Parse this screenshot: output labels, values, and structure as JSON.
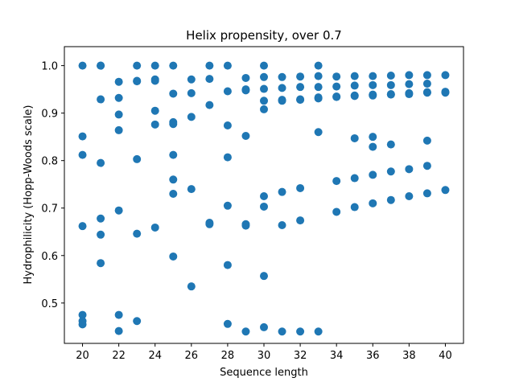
{
  "chart_data": {
    "type": "scatter",
    "title": "Helix propensity, over 0.7",
    "xlabel": "Sequence length",
    "ylabel": "Hydrophilicity (Hopp-Woods scale)",
    "xlim": [
      19,
      41
    ],
    "ylim": [
      0.415,
      1.04
    ],
    "xticks": [
      20,
      22,
      24,
      26,
      28,
      30,
      32,
      34,
      36,
      38,
      40
    ],
    "yticks": [
      0.5,
      0.6,
      0.7,
      0.8,
      0.9,
      1.0
    ],
    "ytick_labels": [
      "0.5",
      "0.6",
      "0.7",
      "0.8",
      "0.9",
      "1.0"
    ],
    "grid": false,
    "marker_color": "#1f77b4",
    "points": [
      [
        20,
        1.0
      ],
      [
        20,
        0.851
      ],
      [
        20,
        0.812
      ],
      [
        20,
        0.662
      ],
      [
        20,
        0.475
      ],
      [
        20,
        0.462
      ],
      [
        20,
        0.455
      ],
      [
        21,
        1.0
      ],
      [
        21,
        1.0
      ],
      [
        21,
        0.929
      ],
      [
        21,
        0.795
      ],
      [
        21,
        0.678
      ],
      [
        21,
        0.644
      ],
      [
        21,
        0.584
      ],
      [
        22,
        0.966
      ],
      [
        22,
        0.932
      ],
      [
        22,
        0.897
      ],
      [
        22,
        0.864
      ],
      [
        22,
        0.695
      ],
      [
        22,
        0.475
      ],
      [
        22,
        0.441
      ],
      [
        23,
        1.0
      ],
      [
        23,
        0.967
      ],
      [
        23,
        0.968
      ],
      [
        23,
        0.803
      ],
      [
        23,
        0.646
      ],
      [
        23,
        0.462
      ],
      [
        24,
        1.0
      ],
      [
        24,
        0.971
      ],
      [
        24,
        0.968
      ],
      [
        24,
        0.905
      ],
      [
        24,
        0.876
      ],
      [
        24,
        0.659
      ],
      [
        25,
        1.0
      ],
      [
        25,
        0.941
      ],
      [
        25,
        0.881
      ],
      [
        25,
        0.877
      ],
      [
        25,
        0.812
      ],
      [
        25,
        0.76
      ],
      [
        25,
        0.73
      ],
      [
        25,
        0.598
      ],
      [
        26,
        0.971
      ],
      [
        26,
        0.942
      ],
      [
        26,
        0.892
      ],
      [
        26,
        0.74
      ],
      [
        26,
        0.535
      ],
      [
        27,
        1.0
      ],
      [
        27,
        0.972
      ],
      [
        27,
        0.917
      ],
      [
        27,
        0.669
      ],
      [
        27,
        0.666
      ],
      [
        28,
        1.0
      ],
      [
        28,
        0.946
      ],
      [
        28,
        0.874
      ],
      [
        28,
        0.807
      ],
      [
        28,
        0.705
      ],
      [
        28,
        0.58
      ],
      [
        28,
        0.456
      ],
      [
        29,
        0.974
      ],
      [
        29,
        0.95
      ],
      [
        29,
        0.948
      ],
      [
        29,
        0.852
      ],
      [
        29,
        0.666
      ],
      [
        29,
        0.663
      ],
      [
        29,
        0.44
      ],
      [
        30,
        1.0
      ],
      [
        30,
        0.976
      ],
      [
        30,
        0.951
      ],
      [
        30,
        0.926
      ],
      [
        30,
        0.908
      ],
      [
        30,
        0.725
      ],
      [
        30,
        0.703
      ],
      [
        30,
        0.557
      ],
      [
        30,
        0.449
      ],
      [
        31,
        0.976
      ],
      [
        31,
        0.953
      ],
      [
        31,
        0.928
      ],
      [
        31,
        0.926
      ],
      [
        31,
        0.734
      ],
      [
        31,
        0.664
      ],
      [
        31,
        0.44
      ],
      [
        32,
        0.977
      ],
      [
        32,
        0.955
      ],
      [
        32,
        0.929
      ],
      [
        32,
        0.928
      ],
      [
        32,
        0.742
      ],
      [
        32,
        0.674
      ],
      [
        32,
        0.44
      ],
      [
        33,
        1.0
      ],
      [
        33,
        0.978
      ],
      [
        33,
        0.955
      ],
      [
        33,
        0.933
      ],
      [
        33,
        0.931
      ],
      [
        33,
        0.86
      ],
      [
        33,
        0.44
      ],
      [
        34,
        0.977
      ],
      [
        34,
        0.956
      ],
      [
        34,
        0.935
      ],
      [
        34,
        0.934
      ],
      [
        34,
        0.757
      ],
      [
        34,
        0.692
      ],
      [
        35,
        0.978
      ],
      [
        35,
        0.958
      ],
      [
        35,
        0.937
      ],
      [
        35,
        0.936
      ],
      [
        35,
        0.847
      ],
      [
        35,
        0.763
      ],
      [
        35,
        0.702
      ],
      [
        36,
        0.978
      ],
      [
        36,
        0.959
      ],
      [
        36,
        0.939
      ],
      [
        36,
        0.937
      ],
      [
        36,
        0.85
      ],
      [
        36,
        0.829
      ],
      [
        36,
        0.77
      ],
      [
        36,
        0.71
      ],
      [
        37,
        0.979
      ],
      [
        37,
        0.959
      ],
      [
        37,
        0.94
      ],
      [
        37,
        0.939
      ],
      [
        37,
        0.834
      ],
      [
        37,
        0.777
      ],
      [
        37,
        0.717
      ],
      [
        38,
        0.98
      ],
      [
        38,
        0.961
      ],
      [
        38,
        0.942
      ],
      [
        38,
        0.94
      ],
      [
        38,
        0.782
      ],
      [
        38,
        0.725
      ],
      [
        39,
        0.98
      ],
      [
        39,
        0.962
      ],
      [
        39,
        0.944
      ],
      [
        39,
        0.943
      ],
      [
        39,
        0.842
      ],
      [
        39,
        0.789
      ],
      [
        39,
        0.731
      ],
      [
        40,
        0.98
      ],
      [
        40,
        0.945
      ],
      [
        40,
        0.943
      ],
      [
        40,
        0.738
      ]
    ]
  }
}
